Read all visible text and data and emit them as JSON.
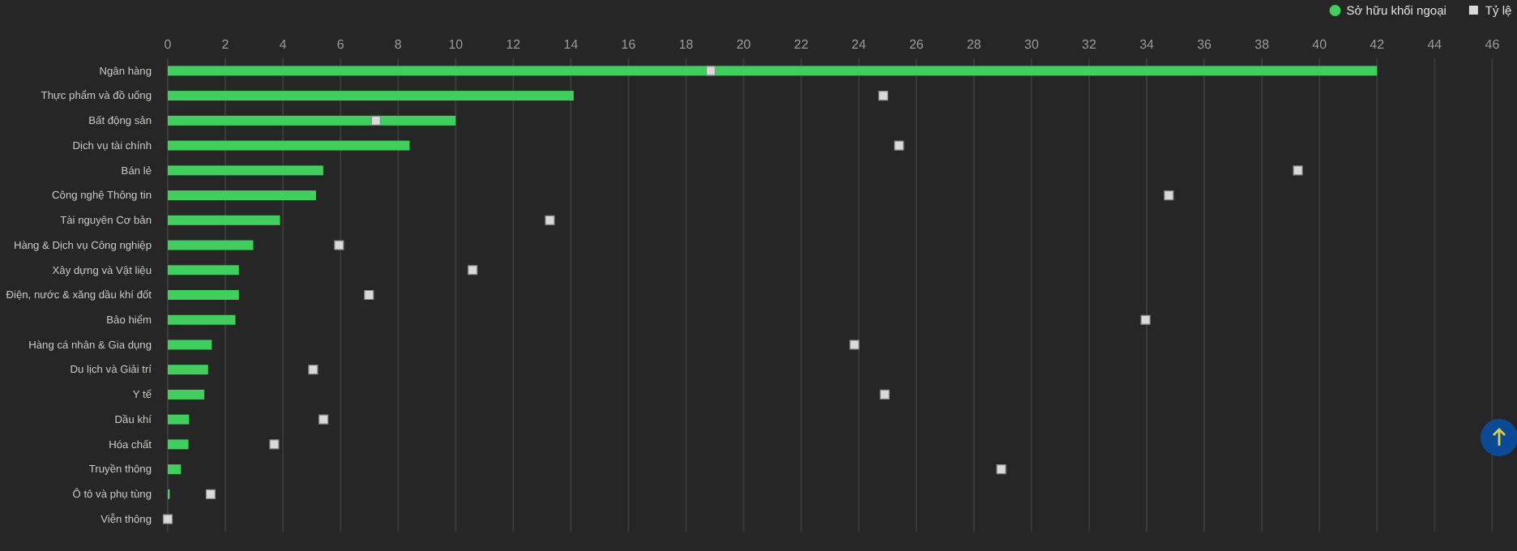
{
  "chart_data": {
    "type": "bar",
    "orientation": "horizontal",
    "grid": "x",
    "legend": "top right",
    "categories": [
      "Ngân hàng",
      "Thực phẩm và đồ uống",
      "Bất động sản",
      "Dịch vụ tài chính",
      "Bán lẻ",
      "Công nghệ Thông tin",
      "Tài nguyên Cơ bản",
      "Hàng & Dịch vụ Công nghiệp",
      "Xây dựng và Vật liệu",
      "Điện, nước & xăng dầu khí đốt",
      "Bảo hiểm",
      "Hàng cá nhân & Gia dụng",
      "Du lịch và Giải trí",
      "Y tế",
      "Dầu khí",
      "Hóa chất",
      "Truyền thông",
      "Ô tô và phụ tùng",
      "Viễn thông"
    ],
    "xlim": [
      0,
      46
    ],
    "xticks": [
      0,
      2,
      4,
      6,
      8,
      10,
      12,
      14,
      16,
      18,
      20,
      22,
      24,
      26,
      28,
      30,
      32,
      34,
      36,
      38,
      40,
      42,
      44,
      46
    ],
    "series": [
      {
        "name": "Sở hữu khối ngoại",
        "type": "bar",
        "color": "#3ecf5c",
        "values": [
          42,
          14.1,
          10,
          8.4,
          5.4,
          5.15,
          3.9,
          2.97,
          2.47,
          2.47,
          2.35,
          1.53,
          1.4,
          1.27,
          0.74,
          0.72,
          0.46,
          0.07,
          null
        ]
      },
      {
        "name": "Tỷ lệ",
        "type": "scatter",
        "marker": "square",
        "color": "#d9d9d9",
        "values": [
          18.86,
          24.85,
          7.23,
          25.4,
          39.25,
          34.77,
          13.27,
          5.95,
          10.59,
          6.99,
          33.96,
          23.85,
          5.05,
          24.9,
          5.41,
          3.7,
          28.95,
          1.49,
          0
        ]
      }
    ]
  }
}
